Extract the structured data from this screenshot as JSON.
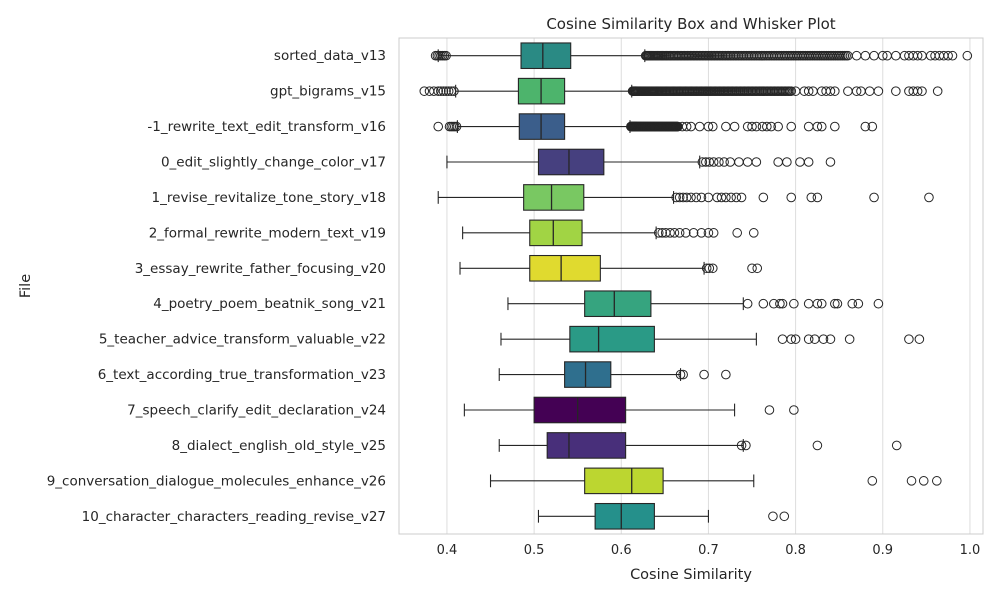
{
  "chart_data": {
    "type": "box",
    "title": "Cosine Similarity Box and Whisker Plot",
    "xlabel": "Cosine Similarity",
    "ylabel": "File",
    "xlim": [
      0.345,
      1.015
    ],
    "xticks": [
      "0.4",
      "0.5",
      "0.6",
      "0.7",
      "0.8",
      "0.9",
      "1.0"
    ],
    "grid": "vertical",
    "categories": [
      {
        "label": "sorted_data_v13",
        "color": "#2a8a84",
        "whisker_low": 0.39,
        "q1": 0.485,
        "median": 0.51,
        "q3": 0.542,
        "whisker_high": 0.627,
        "outliers_low": [
          0.387,
          0.389,
          0.391,
          0.393,
          0.395,
          0.397,
          0.399
        ],
        "outlier_dense_high": [
          0.628,
          0.86
        ],
        "outliers_high": [
          0.87,
          0.88,
          0.89,
          0.9,
          0.905,
          0.915,
          0.925,
          0.93,
          0.935,
          0.94,
          0.945,
          0.955,
          0.96,
          0.965,
          0.97,
          0.975,
          0.98,
          0.997
        ]
      },
      {
        "label": "gpt_bigrams_v15",
        "color": "#4db46c",
        "whisker_low": 0.41,
        "q1": 0.482,
        "median": 0.508,
        "q3": 0.535,
        "whisker_high": 0.612,
        "outliers_low": [
          0.374,
          0.38,
          0.385,
          0.39,
          0.393,
          0.396,
          0.399,
          0.402,
          0.405,
          0.408
        ],
        "outlier_dense_high": [
          0.613,
          0.795
        ],
        "outliers_high": [
          0.8,
          0.81,
          0.815,
          0.82,
          0.83,
          0.835,
          0.84,
          0.845,
          0.86,
          0.87,
          0.875,
          0.885,
          0.895,
          0.915,
          0.93,
          0.935,
          0.94,
          0.945,
          0.963
        ]
      },
      {
        "label": "-1_rewrite_text_edit_transform_v16",
        "color": "#3b5e8b",
        "whisker_low": 0.412,
        "q1": 0.483,
        "median": 0.508,
        "q3": 0.535,
        "whisker_high": 0.61,
        "outliers_low": [
          0.39,
          0.403,
          0.405,
          0.407,
          0.409,
          0.411
        ],
        "outlier_dense_high": [
          0.611,
          0.665
        ],
        "outliers_high": [
          0.67,
          0.675,
          0.68,
          0.69,
          0.7,
          0.705,
          0.72,
          0.73,
          0.745,
          0.75,
          0.755,
          0.762,
          0.767,
          0.772,
          0.78,
          0.795,
          0.815,
          0.825,
          0.83,
          0.845,
          0.88,
          0.888
        ]
      },
      {
        "label": "0_edit_slightly_change_color_v17",
        "color": "#46407f",
        "whisker_low": 0.4,
        "q1": 0.505,
        "median": 0.54,
        "q3": 0.58,
        "whisker_high": 0.69,
        "outliers_low": [],
        "outlier_dense_high": [],
        "outliers_high": [
          0.693,
          0.697,
          0.701,
          0.706,
          0.712,
          0.718,
          0.725,
          0.735,
          0.745,
          0.755,
          0.78,
          0.79,
          0.805,
          0.815,
          0.84
        ]
      },
      {
        "label": "1_revise_revitalize_tone_story_v18",
        "color": "#79c862",
        "whisker_low": 0.39,
        "q1": 0.488,
        "median": 0.52,
        "q3": 0.557,
        "whisker_high": 0.66,
        "outliers_low": [],
        "outlier_dense_high": [],
        "outliers_high": [
          0.663,
          0.667,
          0.671,
          0.675,
          0.68,
          0.686,
          0.692,
          0.7,
          0.71,
          0.715,
          0.72,
          0.726,
          0.732,
          0.738,
          0.763,
          0.795,
          0.818,
          0.825,
          0.89,
          0.953
        ]
      },
      {
        "label": "2_formal_rewrite_modern_text_v19",
        "color": "#a1d444",
        "whisker_low": 0.418,
        "q1": 0.495,
        "median": 0.522,
        "q3": 0.555,
        "whisker_high": 0.64,
        "outliers_low": [],
        "outlier_dense_high": [],
        "outliers_high": [
          0.643,
          0.647,
          0.651,
          0.656,
          0.661,
          0.667,
          0.674,
          0.683,
          0.692,
          0.7,
          0.706,
          0.733,
          0.752
        ]
      },
      {
        "label": "3_essay_rewrite_father_focusing_v20",
        "color": "#e0da2f",
        "whisker_low": 0.415,
        "q1": 0.495,
        "median": 0.531,
        "q3": 0.576,
        "whisker_high": 0.695,
        "outliers_low": [],
        "outlier_dense_high": [],
        "outliers_high": [
          0.698,
          0.701,
          0.705,
          0.75,
          0.756
        ]
      },
      {
        "label": "4_poetry_poem_beatnik_song_v21",
        "color": "#36a47f",
        "whisker_low": 0.47,
        "q1": 0.558,
        "median": 0.592,
        "q3": 0.634,
        "whisker_high": 0.74,
        "outliers_low": [],
        "outlier_dense_high": [],
        "outliers_high": [
          0.745,
          0.763,
          0.775,
          0.782,
          0.785,
          0.798,
          0.815,
          0.825,
          0.83,
          0.845,
          0.848,
          0.865,
          0.872,
          0.895
        ]
      },
      {
        "label": "5_teacher_advice_transform_valuable_v22",
        "color": "#2a9a86",
        "whisker_low": 0.462,
        "q1": 0.541,
        "median": 0.574,
        "q3": 0.638,
        "whisker_high": 0.755,
        "outliers_low": [],
        "outlier_dense_high": [],
        "outliers_high": [
          0.785,
          0.795,
          0.8,
          0.815,
          0.822,
          0.832,
          0.84,
          0.862,
          0.93,
          0.942
        ]
      },
      {
        "label": "6_text_according_true_transformation_v23",
        "color": "#2f6f8e",
        "whisker_low": 0.46,
        "q1": 0.535,
        "median": 0.559,
        "q3": 0.588,
        "whisker_high": 0.668,
        "outliers_low": [],
        "outlier_dense_high": [],
        "outliers_high": [
          0.668,
          0.671,
          0.695,
          0.72
        ]
      },
      {
        "label": "7_speech_clarify_edit_declaration_v24",
        "color": "#440154",
        "whisker_low": 0.42,
        "q1": 0.5,
        "median": 0.55,
        "q3": 0.605,
        "whisker_high": 0.73,
        "outliers_low": [],
        "outlier_dense_high": [],
        "outliers_high": [
          0.77,
          0.798
        ]
      },
      {
        "label": "8_dialect_english_old_style_v25",
        "color": "#482f7a",
        "whisker_low": 0.46,
        "q1": 0.515,
        "median": 0.54,
        "q3": 0.605,
        "whisker_high": 0.74,
        "outliers_low": [],
        "outlier_dense_high": [],
        "outliers_high": [
          0.738,
          0.743,
          0.825,
          0.916
        ]
      },
      {
        "label": "9_conversation_dialogue_molecules_enhance_v26",
        "color": "#bcd630",
        "whisker_low": 0.45,
        "q1": 0.558,
        "median": 0.612,
        "q3": 0.648,
        "whisker_high": 0.752,
        "outliers_low": [],
        "outlier_dense_high": [],
        "outliers_high": [
          0.888,
          0.933,
          0.947,
          0.962
        ]
      },
      {
        "label": "10_character_characters_reading_revise_v27",
        "color": "#25908b",
        "whisker_low": 0.505,
        "q1": 0.57,
        "median": 0.6,
        "q3": 0.638,
        "whisker_high": 0.7,
        "outliers_low": [],
        "outlier_dense_high": [],
        "outliers_high": [
          0.774,
          0.787
        ]
      }
    ]
  }
}
